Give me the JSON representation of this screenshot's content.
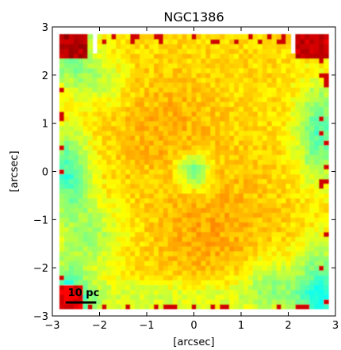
{
  "chart_data": {
    "type": "heatmap",
    "title": "NGC1386",
    "xlabel": "[arcsec]",
    "ylabel": "[arcsec]",
    "xlim": [
      -3,
      3
    ],
    "ylim": [
      -3,
      3
    ],
    "xticks": [
      -3,
      -2,
      -1,
      0,
      1,
      2,
      3
    ],
    "yticks": [
      -3,
      -2,
      -1,
      0,
      1,
      2,
      3
    ],
    "xtick_labels": [
      "−3",
      "−2",
      "−1",
      "0",
      "1",
      "2",
      "3"
    ],
    "ytick_labels": [
      "−3",
      "−2",
      "−1",
      "0",
      "1",
      "2",
      "3"
    ],
    "colormap": "jet",
    "scale_bar": {
      "label": "10 pc",
      "length_arcsec": 0.65
    },
    "field_extent_arcsec": {
      "x": [
        -2.85,
        2.85
      ],
      "y": [
        -2.85,
        2.85
      ]
    },
    "data_summary": "Intensity map: orange-yellow central region with a green-blue spot at the nucleus (0,0), cyan-green patches toward the left and right borders, dark red pixels at the field corners."
  }
}
